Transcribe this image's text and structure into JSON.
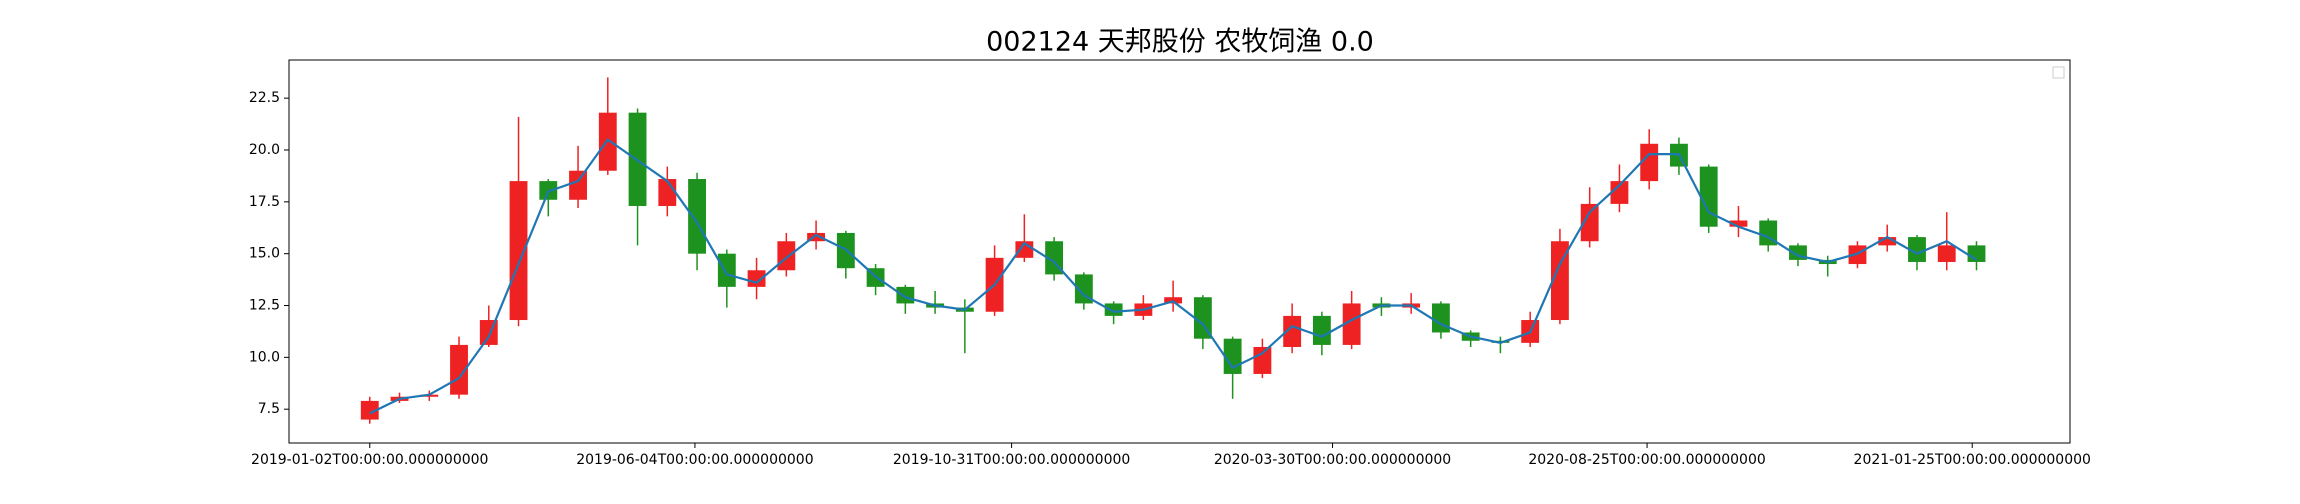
{
  "chart_data": {
    "type": "candlestick",
    "title": "002124 天邦股份 农牧饲渔 0.0",
    "x": [
      "2019-01-02",
      "2019-01-16",
      "2019-01-30",
      "2019-02-13",
      "2019-02-27",
      "2019-03-13",
      "2019-03-27",
      "2019-04-10",
      "2019-04-24",
      "2019-05-08",
      "2019-05-22",
      "2019-06-05",
      "2019-06-19",
      "2019-07-03",
      "2019-07-17",
      "2019-07-31",
      "2019-08-14",
      "2019-08-28",
      "2019-09-11",
      "2019-09-25",
      "2019-10-09",
      "2019-10-23",
      "2019-11-06",
      "2019-11-20",
      "2019-12-04",
      "2019-12-18",
      "2020-01-01",
      "2020-01-15",
      "2020-01-29",
      "2020-02-12",
      "2020-02-26",
      "2020-03-11",
      "2020-03-25",
      "2020-04-08",
      "2020-04-22",
      "2020-05-06",
      "2020-05-20",
      "2020-06-03",
      "2020-06-17",
      "2020-07-01",
      "2020-07-15",
      "2020-07-29",
      "2020-08-12",
      "2020-08-26",
      "2020-09-09",
      "2020-09-23",
      "2020-10-07",
      "2020-10-21",
      "2020-11-04",
      "2020-11-18",
      "2020-12-02",
      "2020-12-16",
      "2020-12-30",
      "2021-01-13",
      "2021-01-27"
    ],
    "open": [
      7.0,
      7.9,
      8.1,
      8.2,
      10.6,
      11.8,
      18.5,
      17.6,
      19.0,
      21.8,
      17.3,
      18.6,
      15.0,
      13.4,
      14.2,
      15.6,
      16.0,
      14.3,
      13.4,
      12.6,
      12.4,
      12.2,
      14.8,
      15.6,
      14.0,
      12.6,
      12.0,
      12.6,
      12.9,
      10.9,
      9.2,
      10.5,
      12.0,
      10.6,
      12.6,
      12.4,
      12.6,
      11.2,
      10.8,
      10.7,
      11.8,
      15.6,
      17.4,
      18.5,
      20.3,
      19.2,
      16.3,
      16.6,
      15.4,
      14.7,
      14.5,
      15.4,
      15.8,
      14.6,
      15.4
    ],
    "close": [
      7.9,
      8.1,
      8.2,
      10.6,
      11.8,
      18.5,
      17.6,
      19.0,
      21.8,
      17.3,
      18.6,
      15.0,
      13.4,
      14.2,
      15.6,
      16.0,
      14.3,
      13.4,
      12.6,
      12.4,
      12.2,
      14.8,
      15.6,
      14.0,
      12.6,
      12.0,
      12.6,
      12.9,
      10.9,
      9.2,
      10.5,
      12.0,
      10.6,
      12.6,
      12.4,
      12.6,
      11.2,
      10.8,
      10.7,
      11.8,
      15.6,
      17.4,
      18.5,
      20.3,
      19.2,
      16.3,
      16.6,
      15.4,
      14.7,
      14.5,
      15.4,
      15.8,
      14.6,
      15.4,
      14.6
    ],
    "low": [
      6.8,
      7.8,
      7.9,
      8.0,
      10.5,
      11.5,
      16.8,
      17.2,
      18.8,
      15.4,
      16.8,
      14.2,
      12.4,
      12.8,
      13.9,
      15.2,
      13.8,
      13.0,
      12.1,
      12.1,
      10.2,
      12.0,
      14.6,
      13.7,
      12.3,
      11.6,
      11.8,
      12.2,
      10.4,
      8.0,
      9.0,
      10.2,
      10.1,
      10.4,
      12.0,
      12.1,
      10.9,
      10.5,
      10.2,
      10.5,
      11.6,
      15.3,
      17.0,
      18.1,
      18.8,
      16.0,
      15.8,
      15.1,
      14.4,
      13.9,
      14.3,
      15.1,
      14.2,
      14.2,
      14.2
    ],
    "high": [
      8.1,
      8.3,
      8.4,
      11.0,
      12.5,
      21.6,
      18.6,
      20.2,
      23.5,
      22.0,
      19.2,
      18.9,
      15.2,
      14.8,
      16.0,
      16.6,
      16.1,
      14.5,
      13.5,
      13.2,
      12.8,
      15.4,
      16.9,
      15.8,
      14.1,
      12.7,
      13.0,
      13.7,
      13.0,
      11.0,
      10.9,
      12.6,
      12.2,
      13.2,
      12.9,
      13.1,
      12.7,
      11.3,
      11.0,
      12.2,
      16.2,
      18.2,
      19.3,
      21.0,
      20.6,
      19.3,
      17.3,
      16.7,
      15.5,
      14.9,
      15.6,
      16.4,
      15.9,
      17.0,
      15.6
    ],
    "up_color": "#ee2222",
    "down_color": "#1e921e",
    "ma": {
      "color": "#1f77b4",
      "values": [
        7.3,
        8.0,
        8.2,
        9.0,
        11.0,
        14.5,
        18.0,
        18.5,
        20.5,
        19.5,
        18.5,
        16.5,
        14.0,
        13.6,
        14.8,
        15.9,
        15.2,
        13.9,
        12.9,
        12.5,
        12.3,
        13.5,
        15.5,
        14.6,
        13.0,
        12.2,
        12.3,
        12.7,
        11.6,
        9.5,
        10.2,
        11.5,
        11.0,
        11.8,
        12.5,
        12.5,
        11.6,
        11.0,
        10.7,
        11.2,
        14.5,
        17.0,
        18.3,
        19.8,
        19.8,
        17.0,
        16.3,
        15.8,
        14.9,
        14.6,
        15.0,
        15.8,
        15.0,
        15.6,
        14.7
      ]
    },
    "xlim": [
      "2018-11-25",
      "2021-03-12"
    ],
    "xticks": [
      {
        "value": "2019-01-02",
        "label": "2019-01-02T00:00:00.000000000"
      },
      {
        "value": "2019-06-04",
        "label": "2019-06-04T00:00:00.000000000"
      },
      {
        "value": "2019-10-31",
        "label": "2019-10-31T00:00:00.000000000"
      },
      {
        "value": "2020-03-30",
        "label": "2020-03-30T00:00:00.000000000"
      },
      {
        "value": "2020-08-25",
        "label": "2020-08-25T00:00:00.000000000"
      },
      {
        "value": "2021-01-25",
        "label": "2021-01-25T00:00:00.000000000"
      }
    ],
    "ylim": [
      5.87,
      24.34
    ],
    "yticks": [
      7.5,
      {
        "value": 10,
        "label": "10.0"
      },
      12.5,
      {
        "value": 15,
        "label": "15.0"
      },
      17.5,
      {
        "value": 20,
        "label": "20.0"
      },
      22.5
    ]
  }
}
